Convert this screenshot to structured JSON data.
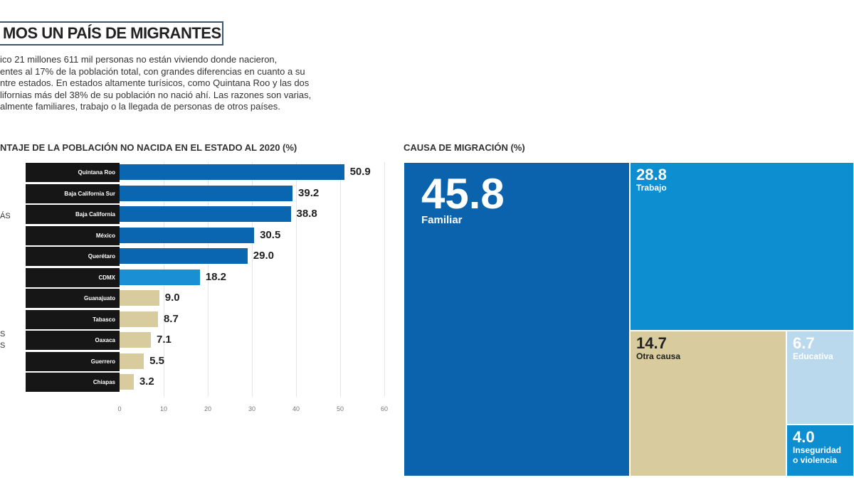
{
  "header": {
    "title": "MOS UN PAÍS DE MIGRANTES",
    "intro": "ico 21 millones 611 mil personas no están viviendo donde nacieron,\nentes al 17% de la población total, con grandes diferencias en cuanto a su\nntre estados. En estados altamente turísicos, como Quintana Roo y las dos\nlifornias más del 38% de su población no nació ahí. Las razones son varias,\nalmente familiares, trabajo o la llegada de personas de otros países."
  },
  "side_labels": [
    "ÁS",
    "S\nS"
  ],
  "chart_data": [
    {
      "type": "bar",
      "orientation": "horizontal",
      "title": "NTAJE DE LA POBLACIÓN NO NACIDA EN EL ESTADO AL 2020 (%)",
      "categories": [
        "Quintana Roo",
        "Baja California Sur",
        "Baja California",
        "México",
        "Querétaro",
        "CDMX",
        "Guanajuato",
        "Tabasco",
        "Oaxaca",
        "Guerrero",
        "Chiapas"
      ],
      "values": [
        50.9,
        39.2,
        38.8,
        30.5,
        29.0,
        18.2,
        9.0,
        8.7,
        7.1,
        5.5,
        3.2
      ],
      "value_labels": [
        "50.9",
        "39.2",
        "38.8",
        "30.5",
        "29.0",
        "18.2",
        "9.0",
        "8.7",
        "7.1",
        "5.5",
        "3.2"
      ],
      "colors": [
        "#0b66b2",
        "#0b66b2",
        "#0b66b2",
        "#0b66b2",
        "#0b66b2",
        "#1a8fd4",
        "#d8cc9f",
        "#d8cc9f",
        "#d8cc9f",
        "#d8cc9f",
        "#d8cc9f"
      ],
      "xlim": [
        0,
        60
      ],
      "ticks": [
        "0",
        "10",
        "20",
        "30",
        "40",
        "50",
        "60"
      ],
      "grid": true
    },
    {
      "type": "treemap",
      "title": "CAUSA DE MIGRACIÓN (%)",
      "items": [
        {
          "label": "Familiar",
          "value": "45.8",
          "color": "#0b62ad"
        },
        {
          "label": "Trabajo",
          "value": "28.8",
          "color": "#0c8ed1"
        },
        {
          "label": "Otra causa",
          "value": "14.7",
          "color": "#d8cb9e"
        },
        {
          "label": "Educativa",
          "value": "6.7",
          "color": "#bad9ec"
        },
        {
          "label": "Inseguridad\no violencia",
          "value": "4.0",
          "color": "#0c8ed1"
        }
      ]
    }
  ]
}
